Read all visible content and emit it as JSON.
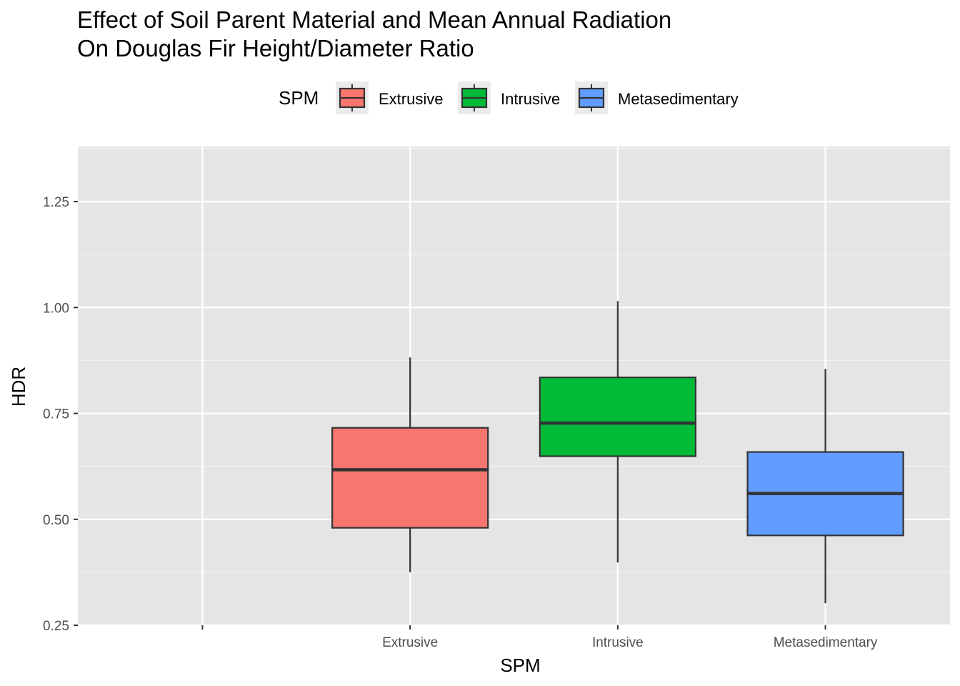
{
  "chart_data": {
    "type": "box",
    "title_lines": [
      "Effect of Soil Parent Material and Mean Annual Radiation",
      "On Douglas Fir Height/Diameter Ratio"
    ],
    "xlabel": "SPM",
    "ylabel": "HDR",
    "legend": {
      "title": "SPM",
      "position": "top",
      "entries": [
        "Extrusive",
        "Intrusive",
        "Metasedimentary"
      ]
    },
    "categories": [
      "",
      "Extrusive",
      "Intrusive",
      "Metasedimentary"
    ],
    "ylim": [
      0.25,
      1.38
    ],
    "yticks": [
      "0.25",
      "0.50",
      "0.75",
      "1.00",
      "1.25"
    ],
    "ytick_values": [
      0.25,
      0.5,
      0.75,
      1.0,
      1.25
    ],
    "grid": true,
    "boxes": [
      {
        "category": "Extrusive",
        "color": "#F8766D",
        "min": 0.375,
        "q1": 0.48,
        "median": 0.617,
        "q3": 0.716,
        "max": 0.882
      },
      {
        "category": "Intrusive",
        "color": "#00BA38",
        "min": 0.398,
        "q1": 0.649,
        "median": 0.727,
        "q3": 0.835,
        "max": 1.015
      },
      {
        "category": "Metasedimentary",
        "color": "#619CFF",
        "min": 0.302,
        "q1": 0.462,
        "median": 0.561,
        "q3": 0.659,
        "max": 0.855
      }
    ]
  }
}
